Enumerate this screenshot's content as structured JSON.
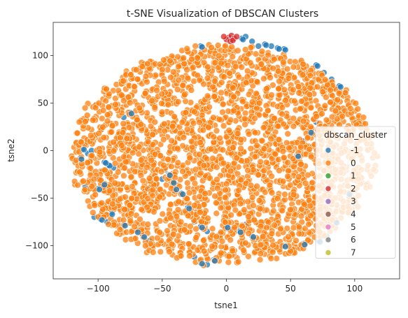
{
  "chart_data": {
    "type": "scatter",
    "title": "t-SNE Visualization of DBSCAN Clusters",
    "xlabel": "tsne1",
    "ylabel": "tsne2",
    "xlim": [
      -135,
      135
    ],
    "ylim": [
      -135,
      135
    ],
    "xticks": [
      -100,
      -50,
      0,
      50,
      100
    ],
    "yticks": [
      -100,
      -50,
      0,
      50,
      100
    ],
    "grid": false,
    "legend": {
      "title": "dbscan_cluster",
      "placement": "lower-right",
      "entries": [
        {
          "label": "-1",
          "color": "#1f77b4"
        },
        {
          "label": "0",
          "color": "#ff7f0e"
        },
        {
          "label": "1",
          "color": "#2ca02c"
        },
        {
          "label": "2",
          "color": "#d62728"
        },
        {
          "label": "3",
          "color": "#9467bd"
        },
        {
          "label": "4",
          "color": "#8c564b"
        },
        {
          "label": "5",
          "color": "#e377c2"
        },
        {
          "label": "6",
          "color": "#7f7f7f"
        },
        {
          "label": "7",
          "color": "#bcbd22"
        }
      ]
    },
    "series": [
      {
        "name": "-1",
        "color": "#1f77b4",
        "points": [
          [
            -112,
            2
          ],
          [
            -108,
            -3
          ],
          [
            -114,
            -8
          ],
          [
            -105,
            0
          ],
          [
            -92,
            -15
          ],
          [
            -88,
            -18
          ],
          [
            -95,
            -12
          ],
          [
            -100,
            -30
          ],
          [
            -96,
            -35
          ],
          [
            -110,
            -38
          ],
          [
            -100,
            -40
          ],
          [
            -103,
            -70
          ],
          [
            -98,
            -72
          ],
          [
            -93,
            -75
          ],
          [
            -90,
            -66
          ],
          [
            -97,
            -65
          ],
          [
            -80,
            -78
          ],
          [
            -50,
            -30
          ],
          [
            -45,
            -25
          ],
          [
            -55,
            -35
          ],
          [
            -40,
            -40
          ],
          [
            -48,
            -20
          ],
          [
            -35,
            -45
          ],
          [
            -57,
            -28
          ],
          [
            -42,
            -33
          ],
          [
            -60,
            -40
          ],
          [
            -30,
            -60
          ],
          [
            -25,
            -75
          ],
          [
            -20,
            -80
          ],
          [
            -15,
            -85
          ],
          [
            0,
            -80
          ],
          [
            5,
            -83
          ],
          [
            10,
            -85
          ],
          [
            15,
            -78
          ],
          [
            20,
            -90
          ],
          [
            -5,
            -88
          ],
          [
            -20,
            -118
          ],
          [
            -15,
            -120
          ],
          [
            -10,
            -115
          ],
          [
            -25,
            -112
          ],
          [
            12,
            118
          ],
          [
            20,
            115
          ],
          [
            30,
            112
          ],
          [
            35,
            110
          ],
          [
            40,
            108
          ],
          [
            25,
            110
          ],
          [
            45,
            107
          ],
          [
            15,
            120
          ],
          [
            -20,
            110
          ],
          [
            82,
            75
          ],
          [
            88,
            68
          ],
          [
            76,
            82
          ],
          [
            70,
            90
          ],
          [
            92,
            60
          ],
          [
            72,
            -95
          ],
          [
            78,
            -90
          ],
          [
            85,
            -75
          ],
          [
            90,
            -60
          ],
          [
            45,
            -100
          ],
          [
            52,
            -105
          ],
          [
            60,
            -98
          ],
          [
            -70,
            30
          ],
          [
            -75,
            40
          ],
          [
            -80,
            35
          ],
          [
            65,
            20
          ],
          [
            70,
            30
          ],
          [
            55,
            -5
          ],
          [
            60,
            10
          ],
          [
            -65,
            -90
          ],
          [
            -60,
            -95
          ],
          [
            -70,
            -85
          ],
          [
            100,
            -55
          ],
          [
            95,
            -45
          ]
        ]
      },
      {
        "name": "2",
        "color": "#d62728",
        "points": [
          [
            2,
            119
          ],
          [
            4,
            121
          ],
          [
            6,
            118
          ],
          [
            0,
            117
          ],
          [
            3,
            115
          ],
          [
            -2,
            120
          ],
          [
            5,
            116
          ],
          [
            8,
            120
          ]
        ]
      }
    ],
    "main_cluster": {
      "name": "0",
      "color": "#ff7f0e",
      "description_center": [
        -2,
        -5
      ],
      "radius_x": 118,
      "radius_y": 115
    }
  }
}
